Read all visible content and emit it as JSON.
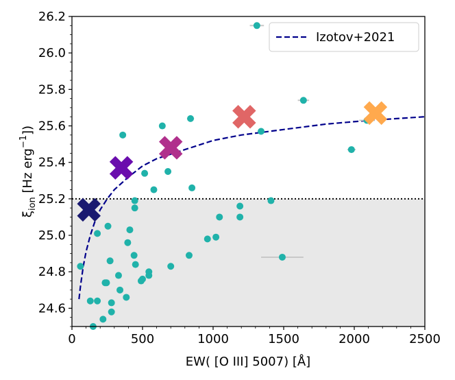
{
  "chart_data": {
    "type": "scatter",
    "title": "",
    "xlabel": "EW( [O III] 5007) [Å]",
    "ylabel_symbol": "ξ",
    "ylabel_subscript": "ion",
    "ylabel_unit": " [Hz erg",
    "ylabel_sup": "−1",
    "ylabel_close": "])",
    "xlim": [
      0,
      2500
    ],
    "ylim": [
      24.5,
      26.2
    ],
    "xticks": [
      0,
      500,
      1000,
      1500,
      2000,
      2500
    ],
    "xtick_labels": [
      "0",
      "500",
      "1000",
      "1500",
      "2000",
      "2500"
    ],
    "yticks": [
      24.6,
      24.8,
      25.0,
      25.2,
      25.4,
      25.6,
      25.8,
      26.0,
      26.2
    ],
    "ytick_labels": [
      "24.6",
      "24.8",
      "25.0",
      "25.2",
      "25.4",
      "25.6",
      "25.8",
      "26.0",
      "26.2"
    ],
    "threshold_line": 25.2,
    "shaded_region": [
      24.5,
      25.2
    ],
    "colors": {
      "points": "#20b2aa",
      "errorbar": "#c8c8c8",
      "model": "#00008b",
      "shade": "#e8e8e8"
    },
    "legend": {
      "label": "Izotov+2021",
      "placement": "top-right"
    },
    "model_curve": {
      "name": "Izotov+2021",
      "x": [
        50,
        60,
        80,
        100,
        130,
        160,
        200,
        250,
        300,
        400,
        500,
        600,
        800,
        1000,
        1200,
        1500,
        1800,
        2100,
        2500
      ],
      "y": [
        24.65,
        24.72,
        24.83,
        24.91,
        25.0,
        25.07,
        25.14,
        25.2,
        25.25,
        25.32,
        25.38,
        25.42,
        25.47,
        25.52,
        25.55,
        25.58,
        25.61,
        25.63,
        25.65
      ]
    },
    "points": [
      {
        "x": 60,
        "y": 24.83
      },
      {
        "x": 130,
        "y": 24.64
      },
      {
        "x": 150,
        "y": 24.5
      },
      {
        "x": 180,
        "y": 25.01
      },
      {
        "x": 180,
        "y": 24.64
      },
      {
        "x": 220,
        "y": 24.54
      },
      {
        "x": 235,
        "y": 24.74
      },
      {
        "x": 245,
        "y": 24.74
      },
      {
        "x": 255,
        "y": 25.05
      },
      {
        "x": 270,
        "y": 24.86
      },
      {
        "x": 280,
        "y": 24.58
      },
      {
        "x": 280,
        "y": 24.63
      },
      {
        "x": 330,
        "y": 24.78
      },
      {
        "x": 340,
        "y": 24.7
      },
      {
        "x": 360,
        "y": 25.55
      },
      {
        "x": 385,
        "y": 24.66
      },
      {
        "x": 395,
        "y": 24.96
      },
      {
        "x": 410,
        "y": 25.03
      },
      {
        "x": 440,
        "y": 24.89
      },
      {
        "x": 445,
        "y": 25.19
      },
      {
        "x": 450,
        "y": 24.84
      },
      {
        "x": 445,
        "y": 25.15
      },
      {
        "x": 490,
        "y": 24.75
      },
      {
        "x": 500,
        "y": 24.76
      },
      {
        "x": 515,
        "y": 25.34
      },
      {
        "x": 545,
        "y": 24.78
      },
      {
        "x": 545,
        "y": 24.8
      },
      {
        "x": 580,
        "y": 25.25
      },
      {
        "x": 640,
        "y": 25.6
      },
      {
        "x": 680,
        "y": 25.35
      },
      {
        "x": 700,
        "y": 24.83
      },
      {
        "x": 830,
        "y": 24.89
      },
      {
        "x": 840,
        "y": 25.64,
        "xerr": 25
      },
      {
        "x": 850,
        "y": 25.26
      },
      {
        "x": 960,
        "y": 24.98
      },
      {
        "x": 1020,
        "y": 24.99
      },
      {
        "x": 1045,
        "y": 25.1
      },
      {
        "x": 1190,
        "y": 25.1
      },
      {
        "x": 1190,
        "y": 25.16
      },
      {
        "x": 1310,
        "y": 26.15,
        "xerr": 50
      },
      {
        "x": 1340,
        "y": 25.57
      },
      {
        "x": 1410,
        "y": 25.19
      },
      {
        "x": 1490,
        "y": 24.88,
        "xerr": 150
      },
      {
        "x": 1640,
        "y": 25.74,
        "xerr": 40
      },
      {
        "x": 1980,
        "y": 25.47,
        "xerr": 30
      },
      {
        "x": 2090,
        "y": 25.63,
        "xerr": 55
      }
    ],
    "stacks": [
      {
        "x": 120,
        "y": 25.14,
        "color": "#191970"
      },
      {
        "x": 350,
        "y": 25.37,
        "color": "#6a0dad"
      },
      {
        "x": 700,
        "y": 25.48,
        "color": "#b0308c"
      },
      {
        "x": 1220,
        "y": 25.65,
        "color": "#e06666"
      },
      {
        "x": 2150,
        "y": 25.67,
        "color": "#ffa94d"
      }
    ]
  }
}
